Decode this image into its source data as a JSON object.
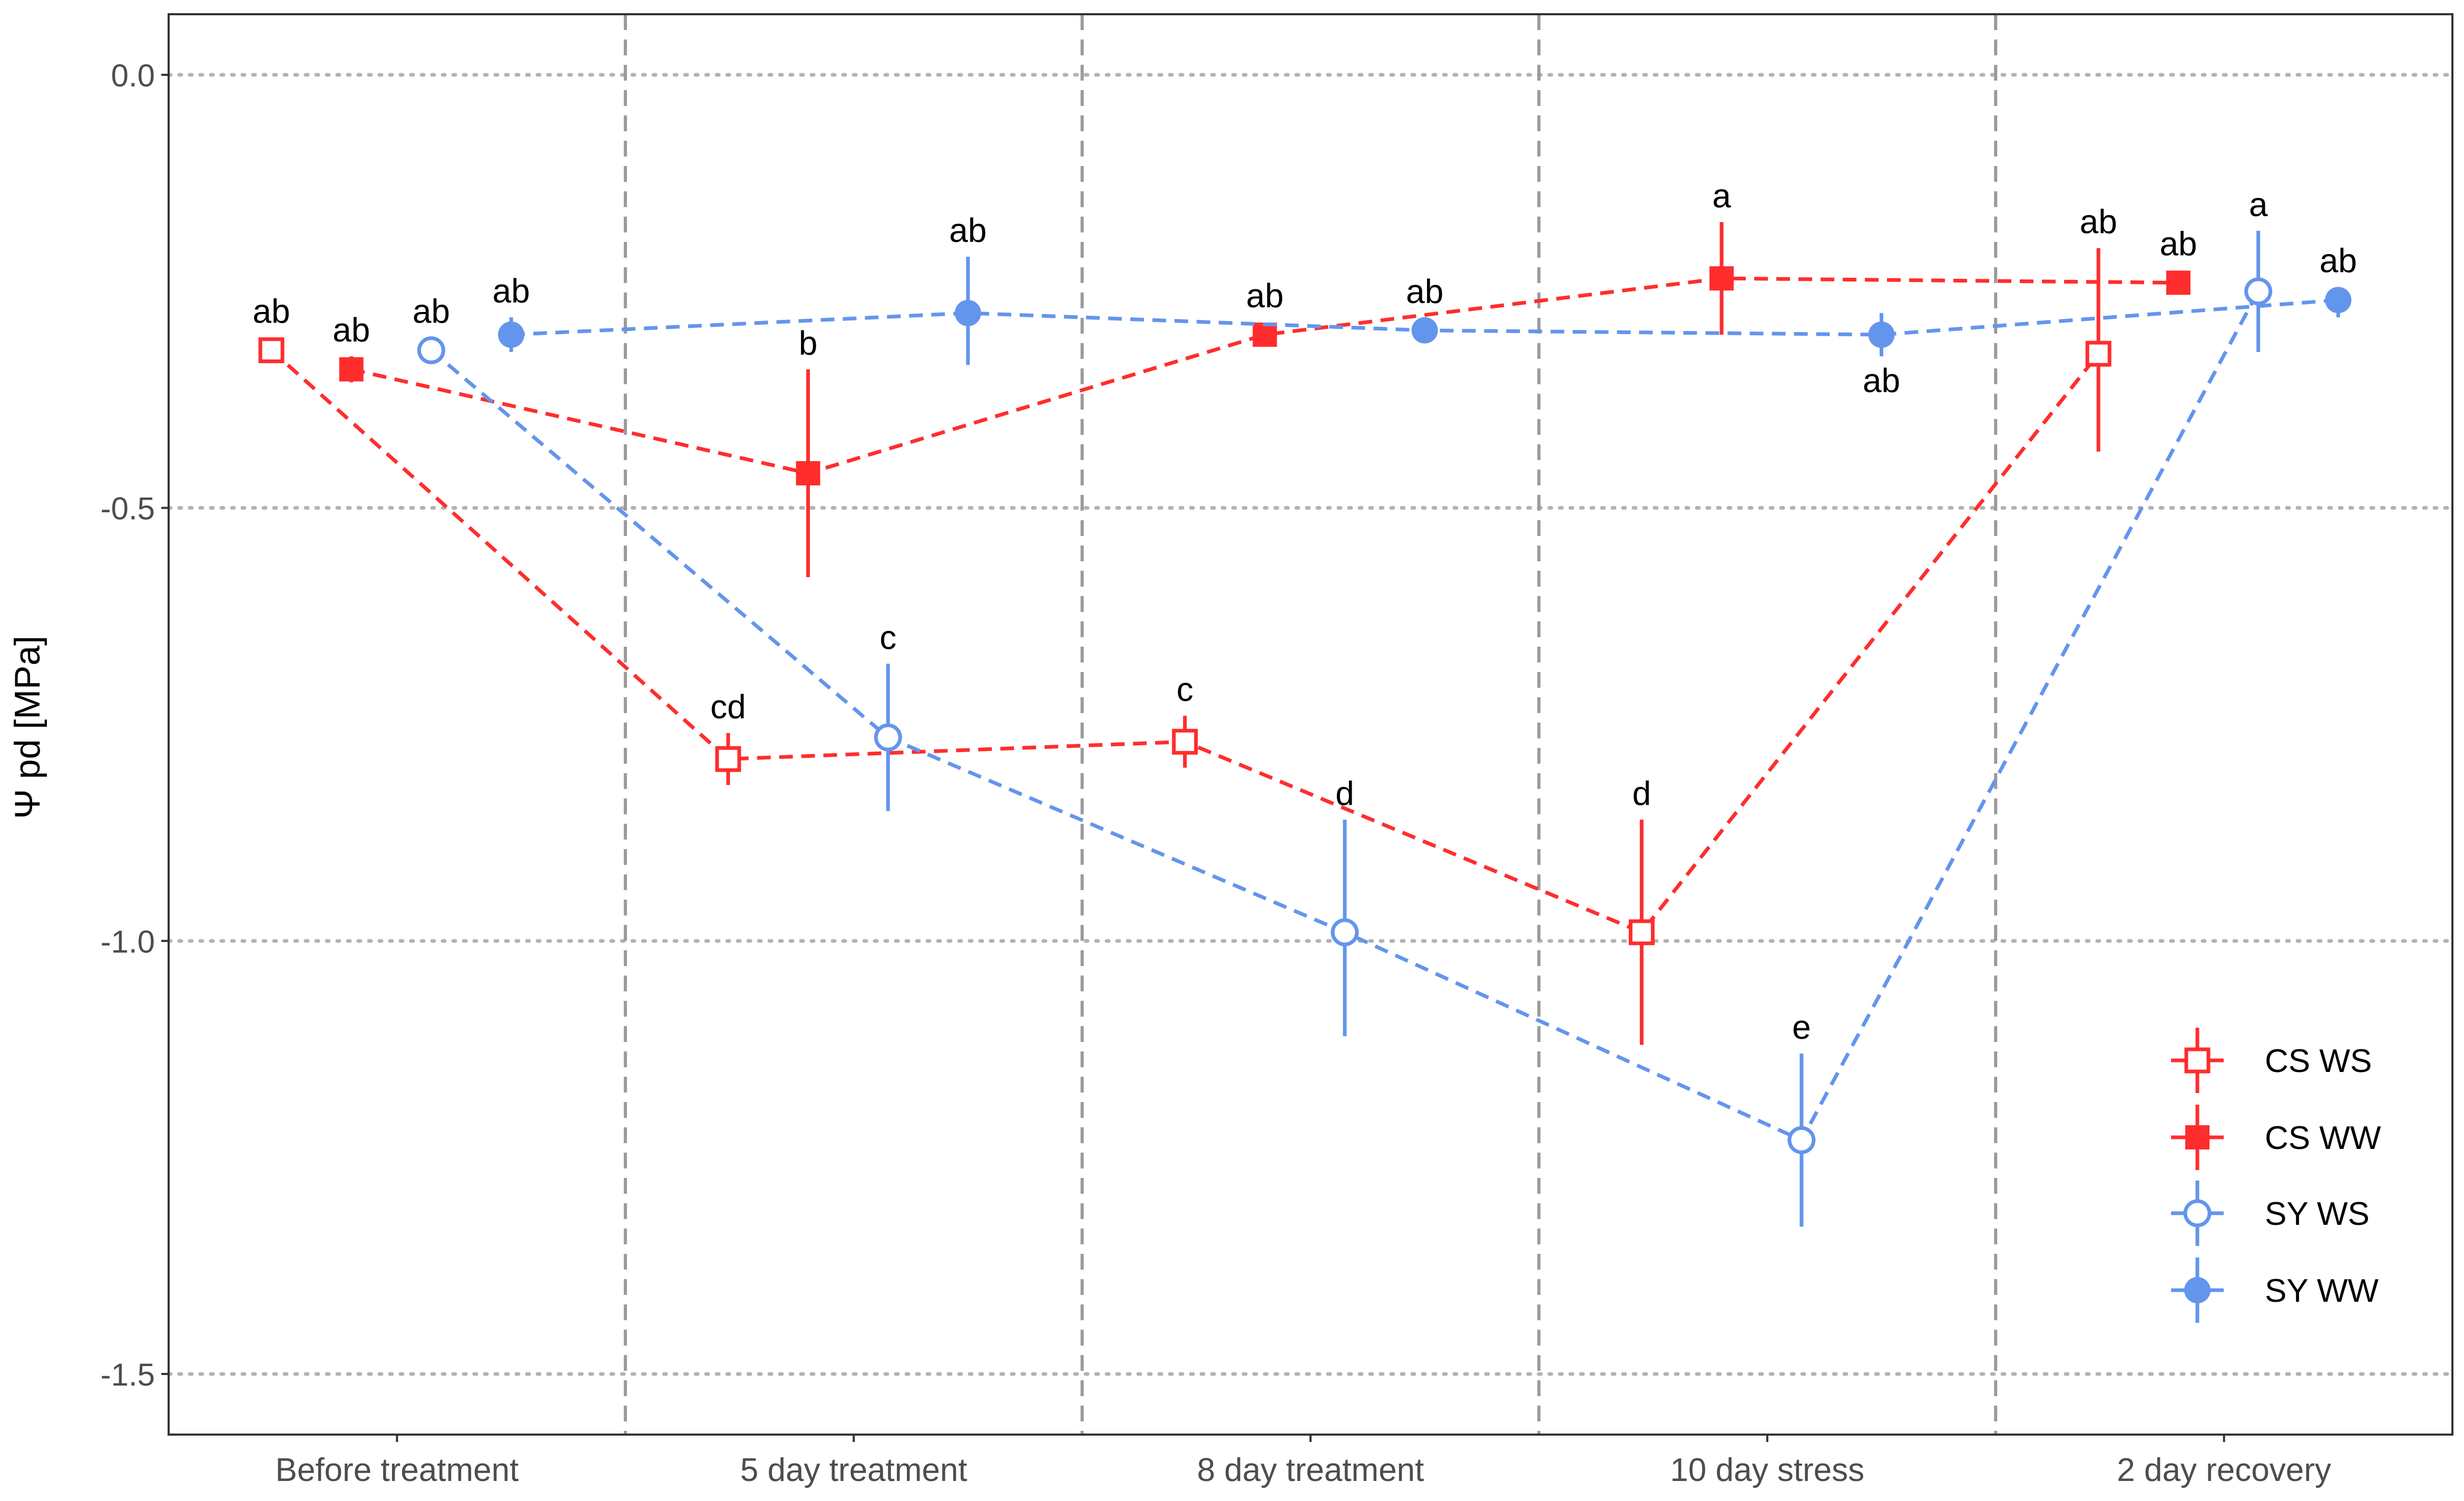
{
  "chart_data": {
    "type": "scatter",
    "title": "",
    "xlabel": "",
    "ylabel": "Ψ pd [MPa]",
    "ylim": [
      -1.57,
      0.07
    ],
    "yticks": [
      0.0,
      -0.5,
      -1.0,
      -1.5
    ],
    "ytick_labels": [
      "0.0",
      "-0.5",
      "-1.0",
      "-1.5"
    ],
    "categories": [
      "Before treatment",
      "5 day treatment",
      "8 day treatment",
      "10 day stress",
      "2 day recovery"
    ],
    "grid": "horizontal dotted",
    "legend": {
      "position": "bottom-right",
      "entries": [
        "CS WS",
        "CS WW",
        "SY WS",
        "SY WW"
      ]
    },
    "series": [
      {
        "name": "CS WS",
        "color": "#ff2d2d",
        "marker": "open-square",
        "offset": -0.275,
        "values": [
          -0.318,
          -0.79,
          -0.77,
          -0.99,
          -0.322
        ],
        "err_hi": [
          -0.305,
          -0.76,
          -0.74,
          -0.86,
          -0.2
        ],
        "err_lo": [
          -0.33,
          -0.82,
          -0.8,
          -1.12,
          -0.435
        ],
        "labels": [
          "ab",
          "cd",
          "c",
          "d",
          "ab"
        ],
        "label_pos": [
          "above",
          "above",
          "above",
          "above",
          "above"
        ]
      },
      {
        "name": "CS WW",
        "color": "#ff2d2d",
        "marker": "filled-square",
        "offset": -0.1,
        "values": [
          -0.34,
          -0.46,
          -0.3,
          -0.235,
          -0.24
        ],
        "err_hi": [
          -0.325,
          -0.34,
          -0.3,
          -0.17,
          -0.24
        ],
        "err_lo": [
          -0.355,
          -0.58,
          -0.3,
          -0.3,
          -0.24
        ],
        "labels": [
          "ab",
          "b",
          "ab",
          "a",
          "ab"
        ],
        "label_pos": [
          "above",
          "above",
          "above",
          "above",
          "above"
        ]
      },
      {
        "name": "SY WS",
        "color": "#6495ed",
        "marker": "open-circle",
        "offset": 0.075,
        "values": [
          -0.318,
          -0.765,
          -0.99,
          -1.23,
          -0.25
        ],
        "err_hi": [
          -0.318,
          -0.68,
          -0.86,
          -1.13,
          -0.18
        ],
        "err_lo": [
          -0.318,
          -0.85,
          -1.11,
          -1.33,
          -0.32
        ],
        "labels": [
          "ab",
          "c",
          "d",
          "e",
          "a"
        ],
        "label_pos": [
          "above",
          "above",
          "above",
          "above",
          "above"
        ]
      },
      {
        "name": "SY WW",
        "color": "#6495ed",
        "marker": "filled-circle",
        "offset": 0.25,
        "values": [
          -0.3,
          -0.275,
          -0.295,
          -0.3,
          -0.26
        ],
        "err_hi": [
          -0.28,
          -0.21,
          -0.295,
          -0.275,
          -0.245
        ],
        "err_lo": [
          -0.32,
          -0.335,
          -0.295,
          -0.325,
          -0.28
        ],
        "labels": [
          "ab",
          "ab",
          "ab",
          "ab",
          "ab"
        ],
        "label_pos": [
          "above",
          "above",
          "above",
          "below",
          "above"
        ]
      }
    ]
  }
}
